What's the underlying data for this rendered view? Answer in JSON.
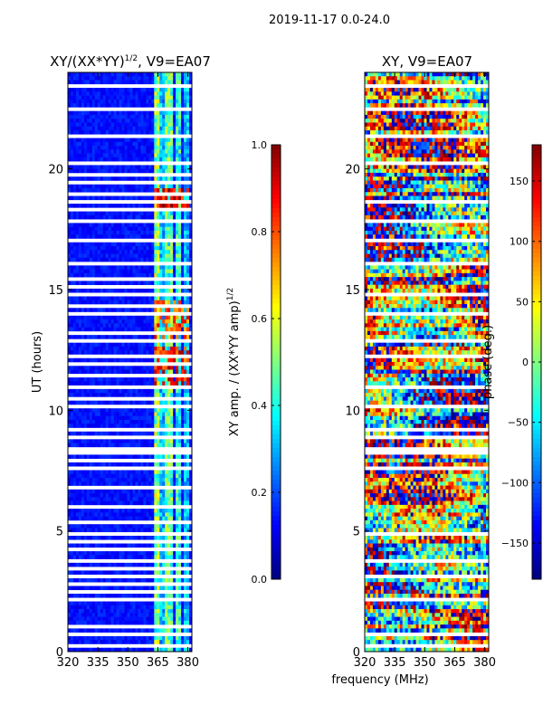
{
  "suptitle": "2019-11-17 0.0-24.0",
  "chart_data": [
    {
      "type": "heatmap",
      "title_main": "XY/(XX*YY)",
      "title_exp": "1/2",
      "title_tail": ", V9=EA07",
      "xlabel": "",
      "ylabel": "UT (hours)",
      "xlim": [
        320,
        382
      ],
      "ylim": [
        0,
        24
      ],
      "xticks": [
        320,
        335,
        350,
        365,
        380
      ],
      "yticks": [
        0,
        5,
        10,
        15,
        20
      ],
      "colormap": "jet",
      "colorbar": {
        "label_main": "XY amp. / (XX*YY amp)",
        "label_exp": "1/2",
        "min": 0.0,
        "max": 1.0,
        "ticks": [
          0.0,
          0.2,
          0.4,
          0.6,
          0.8,
          1.0
        ],
        "tick_labels": [
          "0.0",
          "0.2",
          "0.4",
          "0.6",
          "0.8",
          "1.0"
        ]
      },
      "blank_bands_hours": [
        0.2,
        0.7,
        1.0,
        2.1,
        2.5,
        2.8,
        3.1,
        3.4,
        3.8,
        4.2,
        4.6,
        4.9,
        5.3,
        5.6,
        6.0,
        6.4,
        6.8,
        7.2,
        7.6,
        7.9,
        8.2,
        8.4,
        8.9,
        9.2,
        10.1,
        10.5,
        10.9,
        11.4,
        11.9,
        12.3,
        12.9,
        13.2,
        13.6,
        14.0,
        14.3,
        14.8,
        15.1,
        15.5,
        16.1,
        17.1,
        17.6,
        17.9,
        18.3,
        18.6,
        19.0,
        19.4,
        19.8,
        20.2,
        21.3,
        22.5,
        23.4
      ],
      "background_level": 0.1,
      "bright_bands_mhz": [
        {
          "lo": 363,
          "hi": 366,
          "level": 0.55
        },
        {
          "lo": 366.5,
          "hi": 368,
          "level": 0.35
        },
        {
          "lo": 369,
          "hi": 372,
          "level": 0.5
        },
        {
          "lo": 374,
          "hi": 377,
          "level": 0.45
        },
        {
          "lo": 378,
          "hi": 381,
          "level": 0.35
        }
      ],
      "bright_rows_hours": [
        {
          "lo": 18.4,
          "hi": 19.2,
          "level": 0.9
        },
        {
          "lo": 13.0,
          "hi": 14.6,
          "level": 0.8
        },
        {
          "lo": 11.1,
          "hi": 12.7,
          "level": 0.85
        }
      ]
    },
    {
      "type": "heatmap",
      "title_main": "XY, V9=EA07",
      "xlabel": "frequency (MHz)",
      "ylabel": "",
      "xlim": [
        320,
        382
      ],
      "ylim": [
        0,
        24
      ],
      "xticks": [
        320,
        335,
        350,
        365,
        380
      ],
      "yticks": [
        0,
        5,
        10,
        15,
        20
      ],
      "colormap": "jet",
      "colorbar": {
        "label_main": "phase (deg.)",
        "min": -180,
        "max": 180,
        "ticks": [
          -150,
          -100,
          -50,
          0,
          50,
          100,
          150
        ],
        "tick_labels": [
          "−150",
          "−100",
          "−50",
          "0",
          "50",
          "100",
          "150"
        ]
      },
      "blank_bands_hours": [
        0.2,
        0.7,
        2.1,
        3.1,
        3.8,
        4.9,
        6.4,
        7.6,
        8.2,
        8.4,
        8.9,
        9.2,
        10.1,
        10.9,
        12.3,
        12.9,
        14.0,
        14.8,
        16.1,
        17.1,
        17.9,
        18.6,
        20.2,
        21.3,
        22.5,
        23.4
      ]
    }
  ]
}
